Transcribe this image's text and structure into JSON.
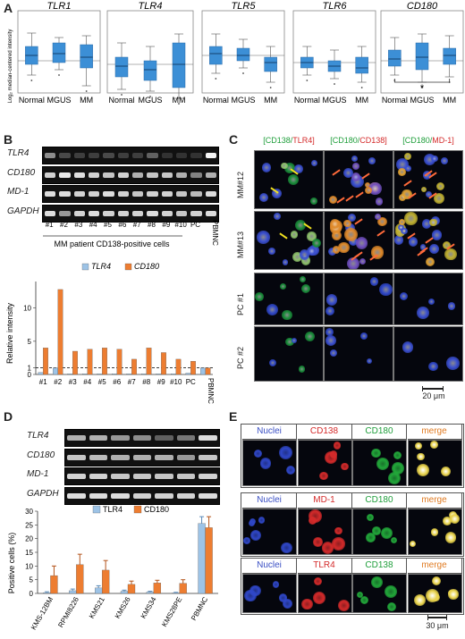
{
  "panel_letters": [
    "A",
    "B",
    "C",
    "D",
    "E"
  ],
  "panelA": {
    "ylabel": "Log₂ median-centered intensity",
    "plots": [
      {
        "title": "TLR1",
        "categories": [
          "Normal",
          "MGUS",
          "MM"
        ]
      },
      {
        "title": "TLR4",
        "categories": [
          "Normal",
          "MGUS",
          "MM"
        ]
      },
      {
        "title": "TLR5",
        "categories": [
          "Normal",
          "MGUS",
          "MM"
        ]
      },
      {
        "title": "TLR6",
        "categories": [
          "Normal",
          "MGUS",
          "MM"
        ]
      },
      {
        "title": "CD180",
        "categories": [
          "Normal",
          "MGUS",
          "MM"
        ],
        "significance": "*"
      }
    ]
  },
  "panelB": {
    "gel_rows": [
      "TLR4",
      "CD180",
      "MD-1",
      "GAPDH"
    ],
    "lanes": [
      "#1",
      "#2",
      "#3",
      "#4",
      "#5",
      "#6",
      "#7",
      "#8",
      "#9",
      "#10",
      "PC",
      "PBMNC"
    ],
    "group_label": "MM patient CD138-positive cells"
  },
  "panelC": {
    "columns": [
      {
        "a": "[CD138/",
        "a_color": "#1e9e3a",
        "b": "TLR4]",
        "b_color": "#d42a2a"
      },
      {
        "a": "[CD180/",
        "a_color": "#1e9e3a",
        "b": "CD138]",
        "b_color": "#d42a2a"
      },
      {
        "a": "[CD180/",
        "a_color": "#1e9e3a",
        "b": "MD-1]",
        "b_color": "#d42a2a"
      }
    ],
    "rows": [
      "MM#12",
      "MM#13",
      "PC #1",
      "PC #2"
    ],
    "scalebar": "20 μm"
  },
  "panelD": {
    "gel_rows": [
      "TLR4",
      "CD180",
      "MD-1",
      "GAPDH"
    ]
  },
  "panelE": {
    "rows": [
      [
        {
          "label": "Nuclei",
          "color": "#3a4fc4"
        },
        {
          "label": "CD138",
          "color": "#d42a2a"
        },
        {
          "label": "CD180",
          "color": "#1e9e3a"
        },
        {
          "label": "merge",
          "color": "#e07b22"
        }
      ],
      [
        {
          "label": "Nuclei",
          "color": "#3a4fc4"
        },
        {
          "label": "MD-1",
          "color": "#d42a2a"
        },
        {
          "label": "CD180",
          "color": "#1e9e3a"
        },
        {
          "label": "merge",
          "color": "#e07b22"
        }
      ],
      [
        {
          "label": "Nuclei",
          "color": "#3a4fc4"
        },
        {
          "label": "TLR4",
          "color": "#d42a2a"
        },
        {
          "label": "CD138",
          "color": "#1e9e3a"
        },
        {
          "label": "merge",
          "color": "#e07b22"
        }
      ]
    ],
    "scalebar": "30 μm"
  },
  "colors": {
    "tlr4": "#9dc3e6",
    "cd180": "#ed7d31",
    "box": "#3c8fd6"
  },
  "chart_data": [
    {
      "type": "bar",
      "panel": "B",
      "ylabel": "Relative intensity",
      "ylim": [
        0,
        14
      ],
      "yticks": [
        0,
        1,
        5,
        10
      ],
      "categories": [
        "#1",
        "#2",
        "#3",
        "#4",
        "#5",
        "#6",
        "#7",
        "#8",
        "#9",
        "#10",
        "PC",
        "PBMNC"
      ],
      "series": [
        {
          "name": "TLR4",
          "values": [
            0.3,
            1.0,
            0.1,
            0.1,
            0.1,
            0.1,
            0.1,
            0.1,
            0.1,
            0.1,
            0.2,
            1.0
          ]
        },
        {
          "name": "CD180",
          "values": [
            4.0,
            12.8,
            3.5,
            3.8,
            4.0,
            3.8,
            2.3,
            4.0,
            3.3,
            2.3,
            2.0,
            1.0
          ]
        }
      ],
      "reference_line": 1
    },
    {
      "type": "bar",
      "panel": "D",
      "ylabel": "Positive cells (%)",
      "ylim": [
        0,
        30
      ],
      "yticks": [
        0,
        5,
        10,
        15,
        20,
        25,
        30
      ],
      "categories": [
        "KMS-12BM",
        "RPMI8226",
        "KMS21",
        "KMS26",
        "KMS34",
        "KMS28PE",
        "PBMNC"
      ],
      "series": [
        {
          "name": "TLR4",
          "values": [
            0.3,
            1.0,
            2.0,
            0.8,
            0.5,
            0.2,
            25.5
          ],
          "errors": [
            0.3,
            0.6,
            0.8,
            0.4,
            0.3,
            0.2,
            2.5
          ]
        },
        {
          "name": "CD180",
          "values": [
            6.5,
            10.5,
            8.5,
            3.3,
            3.8,
            3.7,
            24.0
          ],
          "errors": [
            3.5,
            3.8,
            3.5,
            1.2,
            1.0,
            1.3,
            4.0
          ]
        }
      ]
    }
  ]
}
